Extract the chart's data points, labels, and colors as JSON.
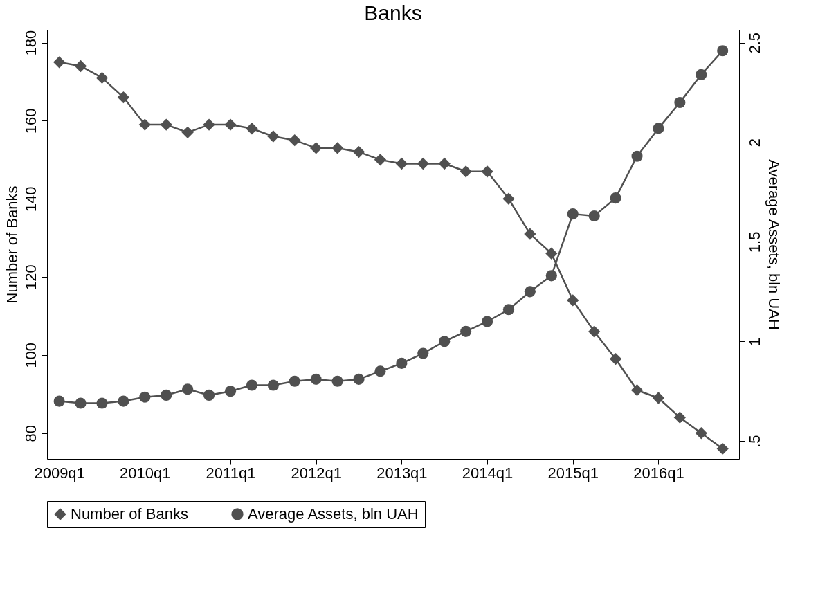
{
  "chart_data": {
    "type": "line",
    "title": "Banks",
    "ylabel": "Number of Banks",
    "y2label": "Average Assets, bln UAH",
    "categories": [
      "2009q1",
      null,
      null,
      null,
      "2010q1",
      null,
      null,
      null,
      "2011q1",
      null,
      null,
      null,
      "2012q1",
      null,
      null,
      null,
      "2013q1",
      null,
      null,
      null,
      "2014q1",
      null,
      null,
      null,
      "2015q1",
      null,
      null,
      null,
      "2016q1",
      null,
      null,
      null
    ],
    "ylim": [
      73.4,
      183.3
    ],
    "yticks": [
      80,
      100,
      120,
      140,
      160,
      180
    ],
    "y2lim": [
      0.41,
      2.565
    ],
    "y2ticks": [
      {
        "value": 0.5,
        "label": ".5"
      },
      1,
      1.5,
      2,
      2.5
    ],
    "series": [
      {
        "name": "Number of Banks",
        "color": "#505050",
        "marker": "diamond",
        "values": [
          175,
          174,
          171,
          166,
          159,
          159,
          157,
          159,
          159,
          158,
          156,
          155,
          153,
          153,
          152,
          150,
          149,
          149,
          149,
          147,
          147,
          140,
          131,
          126,
          114,
          106,
          99,
          91,
          89,
          84,
          80,
          76
        ]
      },
      {
        "name": "Average Assets, bln UAH",
        "color": "#505050",
        "marker": "circle",
        "axis": "y2",
        "values": [
          0.7,
          0.69,
          0.69,
          0.7,
          0.72,
          0.73,
          0.76,
          0.73,
          0.75,
          0.78,
          0.78,
          0.8,
          0.81,
          0.8,
          0.81,
          0.85,
          0.89,
          0.94,
          1.0,
          1.05,
          1.1,
          1.16,
          1.25,
          1.33,
          1.64,
          1.63,
          1.72,
          1.93,
          2.07,
          2.2,
          2.34,
          2.46
        ]
      }
    ],
    "legend": "bottom",
    "grid": false,
    "line_style": "solid"
  }
}
